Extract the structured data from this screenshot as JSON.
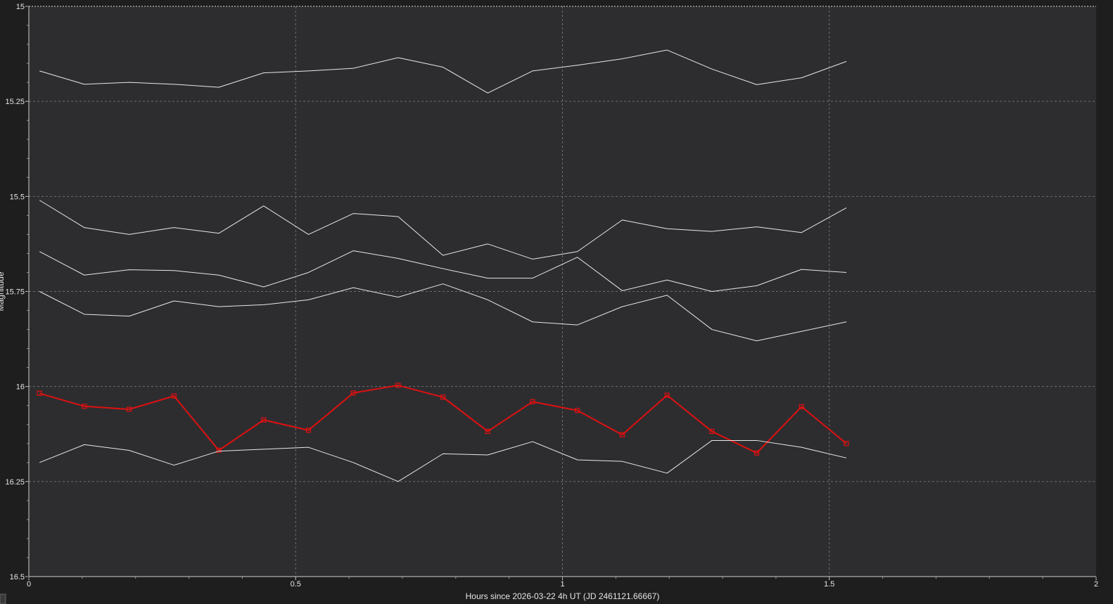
{
  "chart_data": {
    "type": "line",
    "title": "",
    "xlabel": "Hours since 2026-03-22 4h UT (JD 2461121.66667)",
    "ylabel": "Magnitude",
    "xlim": [
      0,
      2
    ],
    "ylim": [
      15,
      16.5
    ],
    "y_inverted": true,
    "grid": true,
    "legend": "none",
    "x_ticks": [
      "0",
      "0.5",
      "1",
      "1.5",
      "2"
    ],
    "y_ticks": [
      "15",
      "15.25",
      "15.5",
      "15.75",
      "16",
      "16.25",
      "16.5"
    ],
    "colors": {
      "background": "#1e1e1e",
      "plot_background": "#2d2d30",
      "grid": "#6e6e6e",
      "comparison": "#e8e8e8",
      "target": "#e01010"
    },
    "x": [
      0.02,
      0.104,
      0.188,
      0.272,
      0.356,
      0.44,
      0.524,
      0.608,
      0.692,
      0.776,
      0.86,
      0.944,
      1.028,
      1.112,
      1.196,
      1.28,
      1.364,
      1.448,
      1.532
    ],
    "series": [
      {
        "role": "comparison",
        "color": "#e8e8e8",
        "markers": false,
        "values": [
          15.17,
          15.205,
          15.2,
          15.205,
          15.213,
          15.175,
          15.17,
          15.163,
          15.135,
          15.16,
          15.228,
          15.17,
          15.155,
          15.138,
          15.115,
          15.165,
          15.206,
          15.188,
          15.145
        ]
      },
      {
        "role": "comparison",
        "color": "#e8e8e8",
        "markers": false,
        "values": [
          15.51,
          15.582,
          15.6,
          15.582,
          15.597,
          15.525,
          15.6,
          15.545,
          15.553,
          15.655,
          15.625,
          15.665,
          15.645,
          15.562,
          15.585,
          15.592,
          15.58,
          15.595,
          15.53
        ]
      },
      {
        "role": "comparison",
        "color": "#e8e8e8",
        "markers": false,
        "values": [
          15.645,
          15.707,
          15.693,
          15.695,
          15.707,
          15.738,
          15.7,
          15.643,
          15.663,
          15.69,
          15.715,
          15.715,
          15.66,
          15.748,
          15.72,
          15.75,
          15.735,
          15.692,
          15.7
        ]
      },
      {
        "role": "comparison",
        "color": "#e8e8e8",
        "markers": false,
        "values": [
          15.75,
          15.81,
          15.815,
          15.775,
          15.79,
          15.785,
          15.772,
          15.74,
          15.765,
          15.73,
          15.772,
          15.83,
          15.838,
          15.79,
          15.76,
          15.85,
          15.88,
          15.855,
          15.83
        ]
      },
      {
        "role": "target",
        "color": "#e01010",
        "markers": true,
        "values": [
          16.018,
          16.052,
          16.06,
          16.025,
          16.168,
          16.088,
          16.115,
          16.017,
          15.997,
          16.028,
          16.118,
          16.04,
          16.063,
          16.127,
          16.023,
          16.118,
          16.175,
          16.053,
          16.15
        ]
      },
      {
        "role": "comparison",
        "color": "#e8e8e8",
        "markers": false,
        "values": [
          16.2,
          16.153,
          16.168,
          16.207,
          16.17,
          16.165,
          16.16,
          16.2,
          16.25,
          16.177,
          16.18,
          16.145,
          16.193,
          16.197,
          16.228,
          16.142,
          16.142,
          16.16,
          16.188
        ]
      }
    ]
  }
}
